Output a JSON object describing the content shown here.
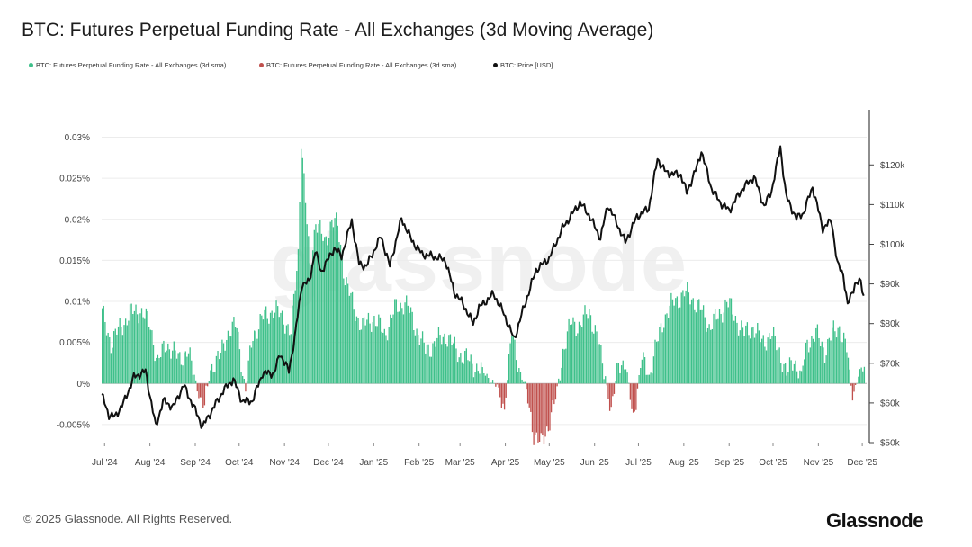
{
  "title": "BTC: Futures Perpetual Funding Rate - All Exchanges (3d Moving Average)",
  "legend": [
    {
      "label": "BTC: Futures Perpetual Funding Rate - All Exchanges (3d sma)",
      "color": "#3ec08a"
    },
    {
      "label": "BTC: Futures Perpetual Funding Rate - All Exchanges (3d sma)",
      "color": "#c0504d"
    },
    {
      "label": "BTC: Price [USD]",
      "color": "#111111"
    }
  ],
  "footer": "© 2025 Glassnode. All Rights Reserved.",
  "watermark": "glassnode",
  "logo": "Glassnode",
  "colors": {
    "positive": "#3ec08a",
    "negative": "#c0504d",
    "price": "#111111"
  },
  "chart_data": {
    "type": "bar",
    "x_ticks": [
      "Jul '24",
      "Aug '24",
      "Sep '24",
      "Oct '24",
      "Nov '24",
      "Dec '24",
      "Jan '25",
      "Feb '25",
      "Mar '25",
      "Apr '25",
      "May '25",
      "Jun '25",
      "Jul '25",
      "Aug '25",
      "Sep '25",
      "Oct '25",
      "Nov '25",
      "Dec '25"
    ],
    "y_left_ticks": [
      "-0.005%",
      "0%",
      "0.005%",
      "0.01%",
      "0.015%",
      "0.02%",
      "0.025%",
      "0.03%"
    ],
    "y_left_range": [
      -0.0072,
      0.0305
    ],
    "y_right_ticks": [
      "$50k",
      "$60k",
      "$70k",
      "$80k",
      "$90k",
      "$100k",
      "$110k",
      "$120k"
    ],
    "y_right_range": [
      50000,
      128000
    ],
    "funding_anchors": [
      [
        "2024-06-29",
        0.0085
      ],
      [
        "2024-07-05",
        0.005
      ],
      [
        "2024-07-12",
        0.007
      ],
      [
        "2024-07-18",
        0.0085
      ],
      [
        "2024-07-25",
        0.009
      ],
      [
        "2024-08-01",
        0.007
      ],
      [
        "2024-08-06",
        0.0025
      ],
      [
        "2024-08-12",
        0.005
      ],
      [
        "2024-08-20",
        0.003
      ],
      [
        "2024-08-26",
        0.004
      ],
      [
        "2024-08-31",
        0.001
      ],
      [
        "2024-09-04",
        -0.002
      ],
      [
        "2024-09-07",
        -0.003
      ],
      [
        "2024-09-11",
        0.002
      ],
      [
        "2024-09-17",
        0.003
      ],
      [
        "2024-09-22",
        0.006
      ],
      [
        "2024-09-29",
        0.007
      ],
      [
        "2024-10-05",
        -0.001
      ],
      [
        "2024-10-10",
        0.006
      ],
      [
        "2024-10-17",
        0.008
      ],
      [
        "2024-10-24",
        0.009
      ],
      [
        "2024-10-31",
        0.008
      ],
      [
        "2024-11-05",
        0.006
      ],
      [
        "2024-11-10",
        0.016
      ],
      [
        "2024-11-12",
        0.03
      ],
      [
        "2024-11-15",
        0.022
      ],
      [
        "2024-11-18",
        0.014
      ],
      [
        "2024-11-22",
        0.02
      ],
      [
        "2024-11-28",
        0.017
      ],
      [
        "2024-12-03",
        0.02
      ],
      [
        "2024-12-07",
        0.019
      ],
      [
        "2024-12-12",
        0.013
      ],
      [
        "2024-12-18",
        0.009
      ],
      [
        "2024-12-24",
        0.007
      ],
      [
        "2025-01-01",
        0.008
      ],
      [
        "2025-01-08",
        0.006
      ],
      [
        "2025-01-15",
        0.009
      ],
      [
        "2025-01-22",
        0.01
      ],
      [
        "2025-01-29",
        0.007
      ],
      [
        "2025-02-05",
        0.004
      ],
      [
        "2025-02-12",
        0.005
      ],
      [
        "2025-02-19",
        0.006
      ],
      [
        "2025-02-26",
        0.004
      ],
      [
        "2025-03-05",
        0.003
      ],
      [
        "2025-03-12",
        0.002
      ],
      [
        "2025-03-19",
        0.001
      ],
      [
        "2025-03-26",
        -0.0005
      ],
      [
        "2025-03-31",
        -0.003
      ],
      [
        "2025-04-05",
        0.006
      ],
      [
        "2025-04-10",
        0.002
      ],
      [
        "2025-04-15",
        -0.001
      ],
      [
        "2025-04-20",
        -0.006
      ],
      [
        "2025-04-25",
        -0.0075
      ],
      [
        "2025-04-30",
        -0.005
      ],
      [
        "2025-05-05",
        -0.002
      ],
      [
        "2025-05-10",
        0.004
      ],
      [
        "2025-05-16",
        0.0075
      ],
      [
        "2025-05-22",
        0.007
      ],
      [
        "2025-05-28",
        0.009
      ],
      [
        "2025-06-03",
        0.005
      ],
      [
        "2025-06-08",
        0.001
      ],
      [
        "2025-06-12",
        -0.004
      ],
      [
        "2025-06-17",
        0.003
      ],
      [
        "2025-06-22",
        0.002
      ],
      [
        "2025-06-27",
        -0.004
      ],
      [
        "2025-07-03",
        0.003
      ],
      [
        "2025-07-08",
        0.001
      ],
      [
        "2025-07-12",
        0.004
      ],
      [
        "2025-07-18",
        0.008
      ],
      [
        "2025-07-25",
        0.01
      ],
      [
        "2025-08-01",
        0.011
      ],
      [
        "2025-08-06",
        0.0105
      ],
      [
        "2025-08-12",
        0.009
      ],
      [
        "2025-08-18",
        0.007
      ],
      [
        "2025-08-24",
        0.008
      ],
      [
        "2025-08-30",
        0.01
      ],
      [
        "2025-09-05",
        0.008
      ],
      [
        "2025-09-11",
        0.006
      ],
      [
        "2025-09-17",
        0.007
      ],
      [
        "2025-09-23",
        0.005
      ],
      [
        "2025-09-29",
        0.006
      ],
      [
        "2025-10-05",
        0.004
      ],
      [
        "2025-10-10",
        0.001
      ],
      [
        "2025-10-15",
        0.003
      ],
      [
        "2025-10-20",
        0.001
      ],
      [
        "2025-10-24",
        0.005
      ],
      [
        "2025-10-30",
        0.006
      ],
      [
        "2025-11-05",
        0.004
      ],
      [
        "2025-11-10",
        0.006
      ],
      [
        "2025-11-15",
        0.007
      ],
      [
        "2025-11-20",
        0.004
      ],
      [
        "2025-11-24",
        -0.0015
      ],
      [
        "2025-11-28",
        0.001
      ],
      [
        "2025-12-02",
        0.002
      ]
    ],
    "price_anchors": [
      [
        "2024-06-29",
        62000
      ],
      [
        "2024-07-04",
        57000
      ],
      [
        "2024-07-08",
        56500
      ],
      [
        "2024-07-14",
        60000
      ],
      [
        "2024-07-21",
        66500
      ],
      [
        "2024-07-29",
        68000
      ],
      [
        "2024-08-05",
        54000
      ],
      [
        "2024-08-10",
        60500
      ],
      [
        "2024-08-17",
        59000
      ],
      [
        "2024-08-24",
        64500
      ],
      [
        "2024-08-31",
        59000
      ],
      [
        "2024-09-06",
        54000
      ],
      [
        "2024-09-13",
        58500
      ],
      [
        "2024-09-20",
        63000
      ],
      [
        "2024-09-27",
        66000
      ],
      [
        "2024-10-03",
        60500
      ],
      [
        "2024-10-10",
        60500
      ],
      [
        "2024-10-17",
        67500
      ],
      [
        "2024-10-25",
        67500
      ],
      [
        "2024-10-29",
        72500
      ],
      [
        "2024-11-04",
        68000
      ],
      [
        "2024-11-08",
        76500
      ],
      [
        "2024-11-13",
        90000
      ],
      [
        "2024-11-18",
        90500
      ],
      [
        "2024-11-22",
        98500
      ],
      [
        "2024-11-26",
        93000
      ],
      [
        "2024-12-05",
        99000
      ],
      [
        "2024-12-10",
        97000
      ],
      [
        "2024-12-17",
        106000
      ],
      [
        "2024-12-22",
        95000
      ],
      [
        "2024-12-27",
        94500
      ],
      [
        "2025-01-06",
        102000
      ],
      [
        "2025-01-12",
        94500
      ],
      [
        "2025-01-20",
        106500
      ],
      [
        "2025-01-27",
        101000
      ],
      [
        "2025-02-03",
        97500
      ],
      [
        "2025-02-10",
        97000
      ],
      [
        "2025-02-19",
        96000
      ],
      [
        "2025-02-25",
        88000
      ],
      [
        "2025-03-03",
        85000
      ],
      [
        "2025-03-10",
        80000
      ],
      [
        "2025-03-14",
        84000
      ],
      [
        "2025-03-24",
        87500
      ],
      [
        "2025-03-31",
        82500
      ],
      [
        "2025-04-07",
        76000
      ],
      [
        "2025-04-14",
        84500
      ],
      [
        "2025-04-22",
        93500
      ],
      [
        "2025-05-01",
        96500
      ],
      [
        "2025-05-10",
        104000
      ],
      [
        "2025-05-22",
        110500
      ],
      [
        "2025-05-28",
        107500
      ],
      [
        "2025-06-05",
        101500
      ],
      [
        "2025-06-10",
        110000
      ],
      [
        "2025-06-16",
        105500
      ],
      [
        "2025-06-22",
        100500
      ],
      [
        "2025-06-30",
        107000
      ],
      [
        "2025-07-08",
        109000
      ],
      [
        "2025-07-14",
        121500
      ],
      [
        "2025-07-20",
        118000
      ],
      [
        "2025-07-30",
        117500
      ],
      [
        "2025-08-03",
        113000
      ],
      [
        "2025-08-10",
        119500
      ],
      [
        "2025-08-13",
        123500
      ],
      [
        "2025-08-20",
        114000
      ],
      [
        "2025-08-26",
        110500
      ],
      [
        "2025-09-01",
        108500
      ],
      [
        "2025-09-10",
        114000
      ],
      [
        "2025-09-18",
        117000
      ],
      [
        "2025-09-25",
        109500
      ],
      [
        "2025-09-30",
        113500
      ],
      [
        "2025-10-06",
        124500
      ],
      [
        "2025-10-10",
        112000
      ],
      [
        "2025-10-17",
        106500
      ],
      [
        "2025-10-22",
        108000
      ],
      [
        "2025-10-28",
        114500
      ],
      [
        "2025-11-04",
        104000
      ],
      [
        "2025-11-10",
        106000
      ],
      [
        "2025-11-14",
        95000
      ],
      [
        "2025-11-18",
        92500
      ],
      [
        "2025-11-21",
        84500
      ],
      [
        "2025-11-26",
        90000
      ],
      [
        "2025-11-30",
        90500
      ],
      [
        "2025-12-02",
        87000
      ]
    ]
  }
}
